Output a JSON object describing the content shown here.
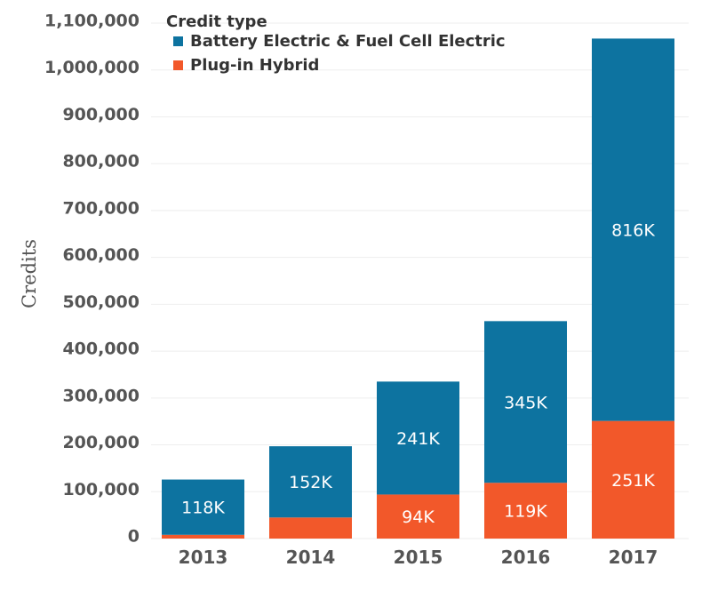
{
  "chart_data": {
    "type": "bar",
    "stacked": true,
    "categories": [
      "2013",
      "2014",
      "2015",
      "2016",
      "2017"
    ],
    "series": [
      {
        "name": "Plug-in Hybrid",
        "values": [
          8000,
          45000,
          94000,
          119000,
          251000
        ],
        "labels": [
          "",
          "",
          "94K",
          "119K",
          "251K"
        ]
      },
      {
        "name": "Battery Electric & Fuel Cell Electric",
        "values": [
          118000,
          152000,
          241000,
          345000,
          816000
        ],
        "labels": [
          "118K",
          "152K",
          "241K",
          "345K",
          "816K"
        ]
      }
    ],
    "xlabel": "",
    "ylabel": "Credits",
    "ylim": [
      0,
      1100000
    ],
    "yticks": [
      0,
      100000,
      200000,
      300000,
      400000,
      500000,
      600000,
      700000,
      800000,
      900000,
      1000000,
      1100000
    ],
    "ytick_labels": [
      "0",
      "100,000",
      "200,000",
      "300,000",
      "400,000",
      "500,000",
      "600,000",
      "700,000",
      "800,000",
      "900,000",
      "1,000,000",
      "1,100,000"
    ],
    "legend": {
      "title": "Credit type",
      "position": "top-left"
    },
    "colors": {
      "Battery Electric & Fuel Cell Electric": "#0d73a0",
      "Plug-in Hybrid": "#f2582a"
    },
    "grid": true
  }
}
